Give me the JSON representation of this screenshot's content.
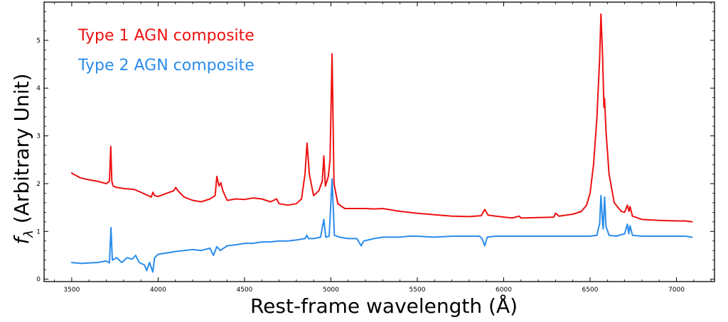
{
  "chart_data": {
    "type": "line",
    "title": "",
    "xlabel": "Rest-frame wavelength (Å)",
    "ylabel": "f_λ (Arbitrary Unit)",
    "ylabel_parts": {
      "symbol": "f",
      "subscript": "λ",
      "rest": " (Arbitrary Unit)"
    },
    "xlim": [
      3340,
      7220
    ],
    "ylim": [
      -0.05,
      5.8
    ],
    "xticks": [
      3500,
      4000,
      4500,
      5000,
      5500,
      6000,
      6500,
      7000
    ],
    "yticks": [
      0,
      1,
      2,
      3,
      4,
      5
    ],
    "grid": false,
    "legend_placement": "top-left",
    "series": [
      {
        "name": "Type 1 AGN composite",
        "color": "#ee1111",
        "x": [
          3500,
          3550,
          3600,
          3650,
          3700,
          3718,
          3726,
          3732,
          3740,
          3760,
          3800,
          3855,
          3869,
          3880,
          3900,
          3960,
          3970,
          3980,
          4000,
          4050,
          4090,
          4102,
          4115,
          4150,
          4200,
          4250,
          4300,
          4330,
          4340,
          4352,
          4363,
          4375,
          4400,
          4450,
          4500,
          4550,
          4600,
          4650,
          4686,
          4700,
          4750,
          4800,
          4830,
          4850,
          4862,
          4875,
          4900,
          4930,
          4950,
          4959,
          4968,
          4985,
          4995,
          5007,
          5018,
          5040,
          5080,
          5100,
          5150,
          5200,
          5250,
          5300,
          5350,
          5400,
          5450,
          5500,
          5600,
          5700,
          5800,
          5870,
          5890,
          5910,
          6000,
          6050,
          6090,
          6100,
          6200,
          6290,
          6300,
          6320,
          6400,
          6450,
          6480,
          6500,
          6520,
          6540,
          6555,
          6563,
          6572,
          6580,
          6584,
          6592,
          6610,
          6640,
          6680,
          6700,
          6716,
          6725,
          6731,
          6745,
          6800,
          6900,
          7000,
          7050,
          7090
        ],
        "y": [
          2.22,
          2.12,
          2.08,
          2.05,
          2.0,
          2.05,
          2.78,
          2.05,
          1.95,
          1.92,
          1.9,
          1.88,
          1.87,
          1.85,
          1.82,
          1.72,
          1.82,
          1.75,
          1.73,
          1.8,
          1.85,
          1.92,
          1.85,
          1.72,
          1.65,
          1.62,
          1.68,
          1.75,
          2.15,
          1.95,
          2.02,
          1.85,
          1.65,
          1.68,
          1.67,
          1.7,
          1.68,
          1.62,
          1.68,
          1.58,
          1.55,
          1.58,
          1.68,
          2.2,
          2.85,
          2.2,
          1.75,
          1.85,
          2.05,
          2.58,
          1.95,
          2.15,
          2.5,
          4.72,
          2.0,
          1.58,
          1.48,
          1.48,
          1.48,
          1.48,
          1.47,
          1.48,
          1.45,
          1.42,
          1.4,
          1.38,
          1.35,
          1.32,
          1.31,
          1.33,
          1.46,
          1.34,
          1.3,
          1.28,
          1.32,
          1.28,
          1.29,
          1.3,
          1.38,
          1.32,
          1.36,
          1.42,
          1.55,
          1.8,
          2.4,
          3.4,
          4.6,
          5.55,
          4.7,
          3.6,
          3.78,
          3.1,
          2.2,
          1.6,
          1.42,
          1.4,
          1.55,
          1.42,
          1.52,
          1.32,
          1.25,
          1.23,
          1.22,
          1.22,
          1.2
        ]
      },
      {
        "name": "Type 2 AGN composite",
        "color": "#2a8cec",
        "x": [
          3500,
          3550,
          3600,
          3650,
          3700,
          3718,
          3727,
          3735,
          3760,
          3790,
          3820,
          3850,
          3870,
          3890,
          3920,
          3934,
          3950,
          3969,
          3980,
          4000,
          4050,
          4100,
          4150,
          4200,
          4250,
          4300,
          4320,
          4340,
          4360,
          4400,
          4450,
          4500,
          4550,
          4600,
          4650,
          4700,
          4750,
          4800,
          4850,
          4861,
          4870,
          4900,
          4940,
          4959,
          4970,
          4990,
          5007,
          5020,
          5050,
          5100,
          5150,
          5175,
          5190,
          5250,
          5300,
          5350,
          5400,
          5450,
          5500,
          5600,
          5700,
          5800,
          5860,
          5875,
          5890,
          5905,
          5950,
          6000,
          6100,
          6200,
          6300,
          6400,
          6500,
          6540,
          6550,
          6555,
          6563,
          6572,
          6576,
          6584,
          6592,
          6610,
          6650,
          6700,
          6716,
          6724,
          6731,
          6745,
          6800,
          6900,
          7000,
          7050,
          7090
        ],
        "y": [
          0.35,
          0.33,
          0.34,
          0.35,
          0.38,
          0.34,
          1.08,
          0.4,
          0.45,
          0.35,
          0.45,
          0.42,
          0.5,
          0.35,
          0.3,
          0.18,
          0.35,
          0.15,
          0.45,
          0.52,
          0.55,
          0.58,
          0.6,
          0.62,
          0.6,
          0.65,
          0.5,
          0.68,
          0.6,
          0.7,
          0.72,
          0.75,
          0.75,
          0.78,
          0.78,
          0.8,
          0.8,
          0.82,
          0.85,
          0.92,
          0.85,
          0.85,
          0.88,
          1.25,
          0.88,
          0.9,
          2.1,
          0.92,
          0.88,
          0.85,
          0.85,
          0.7,
          0.8,
          0.85,
          0.88,
          0.88,
          0.88,
          0.9,
          0.9,
          0.88,
          0.9,
          0.9,
          0.9,
          0.85,
          0.7,
          0.88,
          0.9,
          0.9,
          0.9,
          0.9,
          0.9,
          0.9,
          0.9,
          0.92,
          1.1,
          1.15,
          1.75,
          1.2,
          1.05,
          1.72,
          1.1,
          0.92,
          0.9,
          0.95,
          1.15,
          0.95,
          1.12,
          0.92,
          0.9,
          0.9,
          0.9,
          0.9,
          0.88
        ]
      }
    ]
  }
}
